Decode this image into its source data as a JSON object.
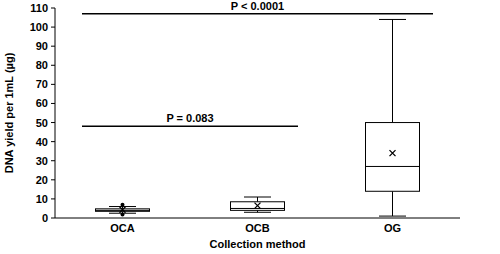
{
  "chart_data": {
    "type": "box",
    "x_label": "Collection method",
    "y_label": "DNA yield per 1mL (µg)",
    "categories": [
      "OCA",
      "OCB",
      "OG"
    ],
    "min": [
      2.5,
      3,
      1
    ],
    "q1": [
      3.5,
      4,
      14
    ],
    "median": [
      4,
      5,
      27
    ],
    "q3": [
      4.8,
      8.5,
      50
    ],
    "max": [
      6,
      11,
      104
    ],
    "mean": [
      4.3,
      6.5,
      34
    ],
    "outliers": [
      [
        7,
        1.8
      ],
      [],
      []
    ],
    "color": "#000000",
    "marker": "x",
    "ylim": [
      0,
      110
    ],
    "yticks": [
      0,
      10,
      20,
      30,
      40,
      50,
      60,
      70,
      80,
      90,
      100,
      110
    ],
    "grid": false,
    "annotations": [
      {
        "text": "P = 0.083",
        "from": "OCA",
        "to": "OCB",
        "y": 48
      },
      {
        "text": "P < 0.0001",
        "from": "OCA",
        "to": "OG",
        "y": 107
      }
    ]
  }
}
